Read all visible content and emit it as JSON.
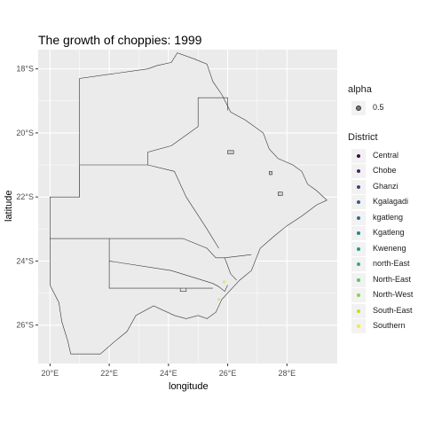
{
  "chart_data": {
    "type": "map",
    "title": "The growth of choppies: 1999",
    "xlabel": "longitude",
    "ylabel": "latitude",
    "xlim": [
      19.6,
      29.7
    ],
    "ylim": [
      -27.2,
      -17.4
    ],
    "x_ticks": [
      {
        "value": 20,
        "label": "20°E"
      },
      {
        "value": 22,
        "label": "22°E"
      },
      {
        "value": 24,
        "label": "24°E"
      },
      {
        "value": 26,
        "label": "26°E"
      },
      {
        "value": 28,
        "label": "28°E"
      }
    ],
    "y_ticks": [
      {
        "value": -18,
        "label": "18°S"
      },
      {
        "value": -20,
        "label": "20°S"
      },
      {
        "value": -22,
        "label": "22°S"
      },
      {
        "value": -24,
        "label": "24°S"
      },
      {
        "value": -26,
        "label": "26°S"
      }
    ],
    "grid": true,
    "panel_color": "#ebebeb",
    "grid_color": "#ffffff",
    "legend_position": "right",
    "legend_alpha": {
      "title": "alpha",
      "items": [
        "0.5"
      ]
    },
    "legend_district": {
      "title": "District",
      "items": [
        {
          "label": "Central",
          "color": "#440154"
        },
        {
          "label": "Chobe",
          "color": "#482173"
        },
        {
          "label": "Ghanzi",
          "color": "#433e85"
        },
        {
          "label": "Kgalagadi",
          "color": "#38588c"
        },
        {
          "label": "kgatleng",
          "color": "#2d708e"
        },
        {
          "label": "Kgatleng",
          "color": "#25858e"
        },
        {
          "label": "Kweneng",
          "color": "#1e9b8a"
        },
        {
          "label": "north-East",
          "color": "#2ab07f"
        },
        {
          "label": "North-East",
          "color": "#52c569"
        },
        {
          "label": "North-West",
          "color": "#86d549"
        },
        {
          "label": "South-East",
          "color": "#c2df23"
        },
        {
          "label": "Southern",
          "color": "#fde725"
        }
      ]
    },
    "points": [
      {
        "lon": 25.88,
        "lat": -24.65,
        "district": "South-East"
      },
      {
        "lon": 25.7,
        "lat": -25.2,
        "district": "South-East"
      }
    ],
    "boundaries": {
      "outline": [
        [
          20.0,
          -24.75
        ],
        [
          20.0,
          -22.0
        ],
        [
          21.0,
          -22.0
        ],
        [
          21.0,
          -18.3
        ],
        [
          23.3,
          -18.0
        ],
        [
          23.6,
          -17.9
        ],
        [
          24.1,
          -17.8
        ],
        [
          24.3,
          -17.5
        ],
        [
          24.9,
          -17.7
        ],
        [
          25.3,
          -17.85
        ],
        [
          25.5,
          -18.4
        ],
        [
          25.8,
          -18.8
        ],
        [
          26.1,
          -19.35
        ],
        [
          26.6,
          -19.6
        ],
        [
          27.2,
          -20.0
        ],
        [
          27.4,
          -20.5
        ],
        [
          27.7,
          -20.8
        ],
        [
          28.2,
          -21.0
        ],
        [
          28.5,
          -21.2
        ],
        [
          28.7,
          -21.6
        ],
        [
          29.0,
          -21.8
        ],
        [
          29.35,
          -22.1
        ],
        [
          29.0,
          -22.25
        ],
        [
          28.5,
          -22.6
        ],
        [
          28.0,
          -22.9
        ],
        [
          27.6,
          -23.2
        ],
        [
          27.1,
          -23.6
        ],
        [
          26.8,
          -24.3
        ],
        [
          26.4,
          -24.6
        ],
        [
          25.8,
          -25.2
        ],
        [
          25.6,
          -25.6
        ],
        [
          25.3,
          -25.8
        ],
        [
          25.0,
          -25.7
        ],
        [
          24.6,
          -25.8
        ],
        [
          24.2,
          -25.7
        ],
        [
          23.5,
          -25.4
        ],
        [
          22.9,
          -25.7
        ],
        [
          22.6,
          -26.2
        ],
        [
          22.2,
          -26.5
        ],
        [
          21.7,
          -26.9
        ],
        [
          20.7,
          -26.9
        ],
        [
          20.6,
          -26.5
        ],
        [
          20.4,
          -25.9
        ],
        [
          20.3,
          -25.3
        ]
      ],
      "lines": [
        [
          [
            20.0,
            -23.3
          ],
          [
            24.5,
            -23.3
          ]
        ],
        [
          [
            21.0,
            -22.0
          ],
          [
            21.0,
            -21.0
          ],
          [
            23.3,
            -21.0
          ],
          [
            24.2,
            -21.2
          ],
          [
            24.6,
            -22.0
          ],
          [
            25.3,
            -23.0
          ],
          [
            25.7,
            -23.6
          ]
        ],
        [
          [
            23.3,
            -21.0
          ],
          [
            23.3,
            -20.6
          ],
          [
            24.1,
            -20.4
          ],
          [
            25.0,
            -19.8
          ],
          [
            25.0,
            -18.9
          ],
          [
            26.0,
            -18.9
          ],
          [
            26.0,
            -19.3
          ]
        ],
        [
          [
            22.0,
            -23.3
          ],
          [
            22.0,
            -24.85
          ],
          [
            25.5,
            -24.85
          ]
        ],
        [
          [
            22.0,
            -24.0
          ],
          [
            24.1,
            -24.3
          ],
          [
            25.5,
            -24.7
          ]
        ],
        [
          [
            24.5,
            -23.3
          ],
          [
            25.3,
            -23.6
          ],
          [
            25.6,
            -23.9
          ],
          [
            25.9,
            -23.9
          ],
          [
            26.1,
            -24.4
          ],
          [
            26.3,
            -24.6
          ]
        ],
        [
          [
            25.9,
            -23.9
          ],
          [
            26.8,
            -23.8
          ]
        ],
        [
          [
            25.5,
            -24.7
          ],
          [
            25.7,
            -24.8
          ],
          [
            25.9,
            -24.95
          ],
          [
            26.0,
            -24.75
          ]
        ],
        [
          [
            24.4,
            -24.85
          ],
          [
            24.4,
            -24.95
          ],
          [
            24.6,
            -24.95
          ],
          [
            24.6,
            -24.85
          ]
        ]
      ],
      "islands": [
        [
          [
            26.0,
            -20.55
          ],
          [
            26.2,
            -20.55
          ],
          [
            26.2,
            -20.65
          ],
          [
            26.0,
            -20.65
          ]
        ],
        [
          [
            27.4,
            -21.2
          ],
          [
            27.5,
            -21.2
          ],
          [
            27.5,
            -21.3
          ],
          [
            27.4,
            -21.3
          ]
        ],
        [
          [
            27.7,
            -21.85
          ],
          [
            27.85,
            -21.85
          ],
          [
            27.85,
            -21.95
          ],
          [
            27.7,
            -21.95
          ]
        ]
      ]
    }
  }
}
